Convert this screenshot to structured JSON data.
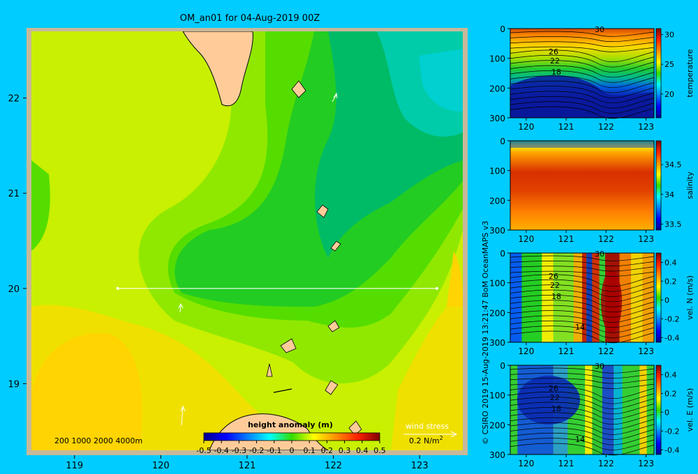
{
  "title": "OM_an01 for 04-Aug-2019 00Z",
  "credit": "© CSIRO 2019   15-Aug-2019 13:21:47 BoM OceanMAPS v3",
  "colors": {
    "background": "#00ccff",
    "land": "#ffcc99"
  },
  "map": {
    "chart_data": {
      "type": "heatmap",
      "xlim": [
        118.5,
        123.5
      ],
      "ylim": [
        18.3,
        22.7
      ],
      "xticks": [
        119,
        120,
        121,
        122,
        123
      ],
      "yticks": [
        19,
        20,
        21,
        22
      ],
      "section_line": {
        "lon": [
          119.5,
          123.2
        ],
        "lat": [
          20.0,
          20.0
        ]
      }
    },
    "depth_legend": "200  1000  2000  4000m",
    "colorbar": {
      "label": "height anomaly  (m)",
      "ticks": [
        "-0.5",
        "-0.4",
        "-0.3",
        "-0.2",
        "-0.1",
        "0",
        "0.1",
        "0.2",
        "0.3",
        "0.4",
        "0.5"
      ],
      "range": [
        -0.5,
        0.5
      ]
    },
    "wind_stress": {
      "label": "wind stress",
      "scale": "0.2 N/m",
      "unit_exp": "2"
    }
  },
  "panels": [
    {
      "label": "temperature",
      "yticks": [
        "0",
        "100",
        "200",
        "300"
      ],
      "xticks": [
        "120",
        "121",
        "122",
        "123"
      ],
      "cbar_ticks": [
        "30",
        "25",
        "20"
      ],
      "cbar_range": [
        16,
        31
      ],
      "contour_labels": [
        "30",
        "26",
        "22",
        "18"
      ]
    },
    {
      "label": "salinity",
      "yticks": [
        "0",
        "100",
        "200",
        "300"
      ],
      "xticks": [
        "120",
        "121",
        "122",
        "123"
      ],
      "cbar_ticks": [
        "34.5",
        "34",
        "33.5"
      ],
      "cbar_range": [
        33.4,
        34.9
      ],
      "contour_labels": []
    },
    {
      "label": "vel. N  (m/s)",
      "yticks": [
        "0",
        "100",
        "200",
        "300"
      ],
      "xticks": [
        "120",
        "121",
        "122",
        "123"
      ],
      "cbar_ticks": [
        "0.4",
        "0.2",
        "0",
        "-0.2",
        "-0.4"
      ],
      "cbar_range": [
        -0.45,
        0.5
      ],
      "contour_labels": [
        "30",
        "26",
        "22",
        "18",
        "14"
      ]
    },
    {
      "label": "vel. E  (m/s)",
      "yticks": [
        "0",
        "100",
        "200",
        "300"
      ],
      "xticks": [
        "120",
        "121",
        "122",
        "123"
      ],
      "cbar_ticks": [
        "0.4",
        "0.2",
        "0",
        "-0.2",
        "-0.4"
      ],
      "cbar_range": [
        -0.45,
        0.5
      ],
      "contour_labels": [
        "30",
        "26",
        "22",
        "18",
        "14"
      ]
    }
  ]
}
